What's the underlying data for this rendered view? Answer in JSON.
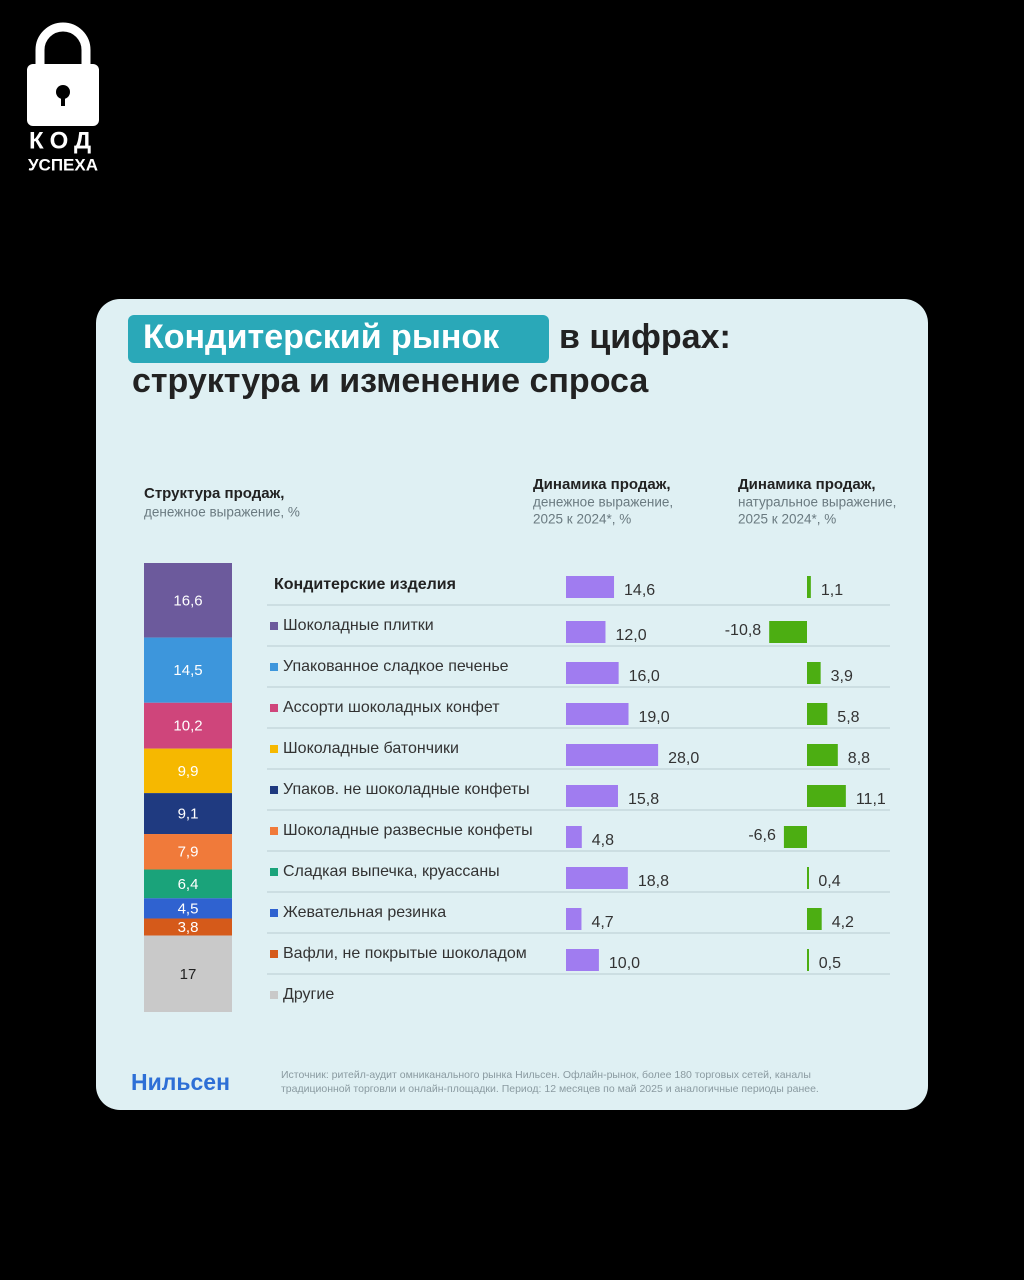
{
  "logo": {
    "top": "КОД",
    "bottom": "УСПЕХА"
  },
  "header": {
    "highlight": "Кондитерский рынок",
    "title_rest": "в цифрах:",
    "title_line2": "структура и изменение спроса"
  },
  "chart_data": [
    {
      "type": "stacked-column",
      "title": "Структура продаж,",
      "subtitle": "денежное выражение, %",
      "categories": [
        "Шоколадные плитки",
        "Упакованное сладкое печенье",
        "Ассорти шоколадных конфет",
        "Шоколадные батончики",
        "Упаков. не шоколадные конфеты",
        "Шоколадные развесные конфеты",
        "Сладкая выпечка, круассаны",
        "Жевательная резинка",
        "Вафли, не покрытые шоколадом",
        "Другие"
      ],
      "values": [
        16.6,
        14.5,
        10.2,
        9.9,
        9.1,
        7.9,
        6.4,
        4.5,
        3.8,
        17
      ],
      "value_labels": [
        "16,6",
        "14,5",
        "10,2",
        "9,9",
        "9,1",
        "7,9",
        "6,4",
        "4,5",
        "3,8",
        "17"
      ],
      "colors": [
        "#6c5a9c",
        "#3d96dc",
        "#cf457b",
        "#f6b800",
        "#1f3a80",
        "#f07a3a",
        "#1aa37a",
        "#2f62d0",
        "#d55a1a",
        "#c9c9c9"
      ]
    },
    {
      "type": "hbar",
      "title": "Динамика продаж,",
      "subtitle": [
        "денежное выражение,",
        "2025 к 2024*, %"
      ],
      "total": {
        "label": "Кондитерские изделия",
        "value": 14.6,
        "value_label": "14,6"
      },
      "values": [
        12.0,
        16.0,
        19.0,
        28.0,
        15.8,
        4.8,
        18.8,
        4.7,
        10.0
      ],
      "value_labels": [
        "12,0",
        "16,0",
        "19,0",
        "28,0",
        "15,8",
        "4,8",
        "18,8",
        "4,7",
        "10,0"
      ],
      "color": "#a07cf0"
    },
    {
      "type": "hbar",
      "title": "Динамика продаж,",
      "subtitle": [
        "натуральное выражение,",
        "2025 к 2024*, %"
      ],
      "total": {
        "value": 1.1,
        "value_label": "1,1"
      },
      "values": [
        -10.8,
        3.9,
        5.8,
        8.8,
        11.1,
        -6.6,
        0.4,
        4.2,
        0.5
      ],
      "value_labels": [
        "-10,8",
        "3,9",
        "5,8",
        "8,8",
        "11,1",
        "-6,6",
        "0,4",
        "4,2",
        "0,5"
      ],
      "color": "#4cae12"
    }
  ],
  "footer": {
    "brand": "Нильсен",
    "source": [
      "Источник: ритейл-аудит омниканального рынка Нильсен. Офлайн-рынок, более 180 торговых сетей, каналы",
      "традиционной торговли и онлайн-площадки. Период: 12 месяцев по май 2025 и аналогичные периоды ранее."
    ]
  }
}
